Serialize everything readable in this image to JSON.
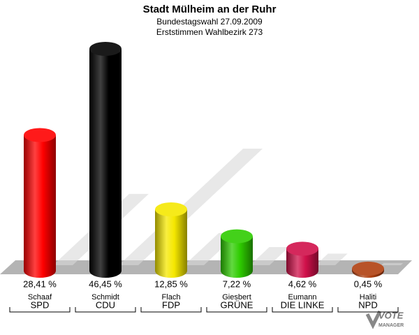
{
  "chart_data": {
    "type": "bar3d",
    "title": "Stadt Mülheim an der Ruhr",
    "subtitle": "Bundestagswahl 27.09.2009",
    "subtitle2": "Erststimmen Wahlbezirk 273",
    "categories": [
      "SPD",
      "CDU",
      "FDP",
      "GRÜNE",
      "DIE LINKE",
      "NPD"
    ],
    "candidates": [
      "Schaaf",
      "Schmidt",
      "Flach",
      "Giesbert",
      "Eumann",
      "Haliti"
    ],
    "values": [
      28.41,
      46.45,
      12.85,
      7.22,
      4.62,
      0.45
    ],
    "value_labels": [
      "28,41 %",
      "46,45 %",
      "12,85 %",
      "7,22 %",
      "4,62 %",
      "0,45 %"
    ],
    "colors": [
      "#ff0000",
      "#000000",
      "#f5e800",
      "#2ecc00",
      "#d0104a",
      "#b04010"
    ]
  },
  "logo": {
    "line1": "VOTE",
    "line2": "MANAGER"
  }
}
